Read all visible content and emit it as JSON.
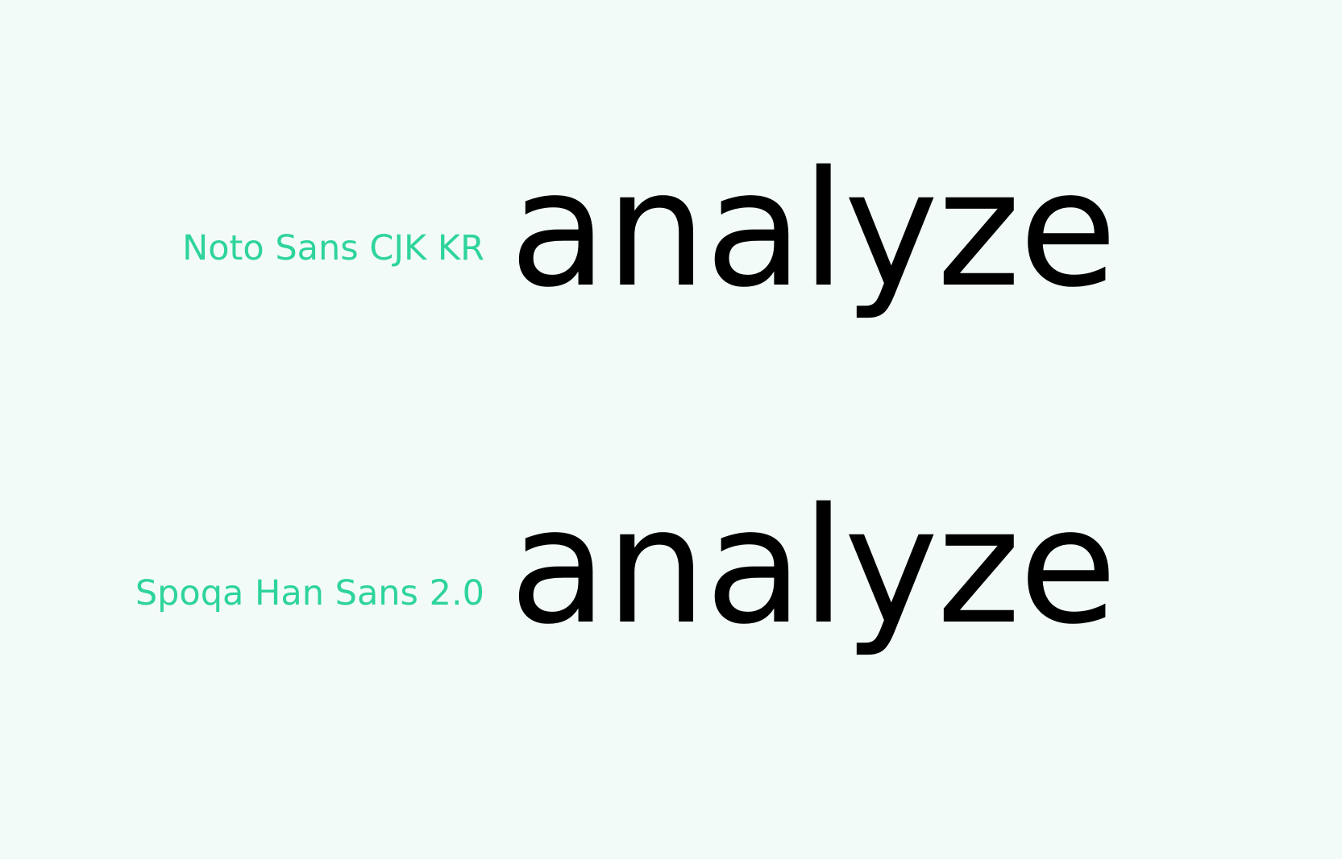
{
  "background_color": "#f2fbf8",
  "label_color": "#2ed49a",
  "text_color": "#000000",
  "rows": [
    {
      "font_name": "Noto Sans CJK KR",
      "sample": "analyze"
    },
    {
      "font_name": "Spoqa Han Sans 2.0",
      "sample": "analyze"
    }
  ]
}
